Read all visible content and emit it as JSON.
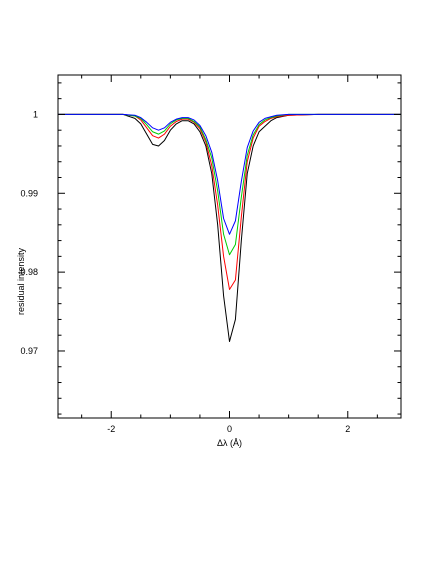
{
  "chart_data": {
    "type": "line",
    "title": "",
    "xlabel": "Δλ (Å)",
    "ylabel": "residual intensity",
    "xlim": [
      -2.9,
      2.9
    ],
    "ylim": [
      0.9615,
      1.005
    ],
    "x_ticks": [
      -2,
      0,
      2
    ],
    "y_ticks": [
      0.97,
      0.98,
      0.99,
      1
    ],
    "x_tick_labels": [
      "-2",
      "0",
      "2"
    ],
    "y_tick_labels": [
      "0.97",
      "0.98",
      "0.99",
      "1"
    ],
    "grid": false,
    "legend": "none",
    "series": [
      {
        "color": "#000000",
        "x": [
          -2.9,
          -1.8,
          -1.6,
          -1.5,
          -1.4,
          -1.3,
          -1.2,
          -1.1,
          -1.0,
          -0.9,
          -0.8,
          -0.7,
          -0.6,
          -0.5,
          -0.4,
          -0.3,
          -0.2,
          -0.1,
          0.0,
          0.1,
          0.2,
          0.3,
          0.4,
          0.5,
          0.6,
          0.7,
          0.8,
          1.0,
          1.5,
          2.9
        ],
        "y": [
          1.0,
          1.0,
          0.9995,
          0.9988,
          0.9975,
          0.9962,
          0.996,
          0.9967,
          0.998,
          0.9988,
          0.9992,
          0.9992,
          0.9988,
          0.9978,
          0.996,
          0.9925,
          0.986,
          0.977,
          0.9712,
          0.974,
          0.984,
          0.9925,
          0.996,
          0.9978,
          0.9985,
          0.9992,
          0.9996,
          0.9999,
          1.0,
          1.0
        ]
      },
      {
        "color": "#ff0000",
        "x": [
          -2.9,
          -1.8,
          -1.6,
          -1.5,
          -1.4,
          -1.3,
          -1.2,
          -1.1,
          -1.0,
          -0.9,
          -0.8,
          -0.7,
          -0.6,
          -0.5,
          -0.4,
          -0.3,
          -0.2,
          -0.1,
          0.0,
          0.1,
          0.2,
          0.3,
          0.4,
          0.5,
          0.6,
          0.7,
          0.8,
          1.0,
          1.5,
          2.9
        ],
        "y": [
          1.0,
          1.0,
          0.9998,
          0.9993,
          0.9983,
          0.9973,
          0.997,
          0.9975,
          0.9985,
          0.9991,
          0.9994,
          0.9994,
          0.999,
          0.9982,
          0.9965,
          0.9935,
          0.9885,
          0.982,
          0.9778,
          0.979,
          0.987,
          0.994,
          0.997,
          0.9985,
          0.9991,
          0.9995,
          0.9997,
          0.9999,
          1.0,
          1.0
        ]
      },
      {
        "color": "#00cc00",
        "x": [
          -2.9,
          -1.8,
          -1.6,
          -1.5,
          -1.4,
          -1.3,
          -1.2,
          -1.1,
          -1.0,
          -0.9,
          -0.8,
          -0.7,
          -0.6,
          -0.5,
          -0.4,
          -0.3,
          -0.2,
          -0.1,
          0.0,
          0.1,
          0.2,
          0.3,
          0.4,
          0.5,
          0.6,
          0.7,
          0.8,
          1.0,
          1.5,
          2.9
        ],
        "y": [
          1.0,
          1.0,
          0.9998,
          0.9995,
          0.9987,
          0.9978,
          0.9975,
          0.9979,
          0.9988,
          0.9993,
          0.9995,
          0.9995,
          0.9991,
          0.9984,
          0.9968,
          0.9945,
          0.9903,
          0.9848,
          0.9822,
          0.9835,
          0.9895,
          0.9948,
          0.9974,
          0.9987,
          0.9993,
          0.9996,
          0.9998,
          1.0,
          1.0,
          1.0
        ]
      },
      {
        "color": "#0000ff",
        "x": [
          -2.9,
          -1.8,
          -1.6,
          -1.5,
          -1.4,
          -1.3,
          -1.2,
          -1.1,
          -1.0,
          -0.9,
          -0.8,
          -0.7,
          -0.6,
          -0.5,
          -0.4,
          -0.3,
          -0.2,
          -0.1,
          0.0,
          0.1,
          0.2,
          0.3,
          0.4,
          0.5,
          0.6,
          0.7,
          0.8,
          1.0,
          1.5,
          2.9
        ],
        "y": [
          1.0,
          1.0,
          0.9999,
          0.9996,
          0.999,
          0.9983,
          0.998,
          0.9983,
          0.999,
          0.9994,
          0.9996,
          0.9996,
          0.9993,
          0.9986,
          0.9973,
          0.9952,
          0.9916,
          0.9868,
          0.9848,
          0.9865,
          0.9915,
          0.9958,
          0.9979,
          0.999,
          0.9995,
          0.9997,
          0.9999,
          1.0,
          1.0,
          1.0
        ]
      }
    ]
  }
}
